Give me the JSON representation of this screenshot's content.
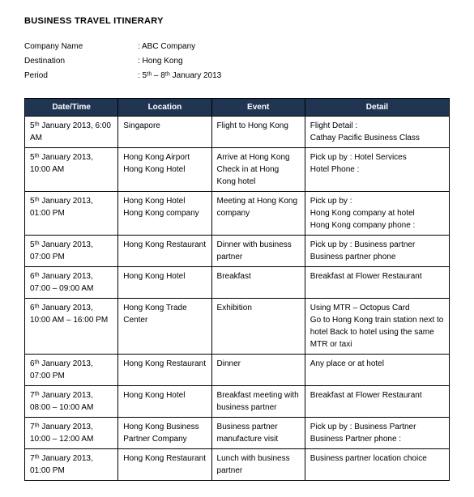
{
  "title": "BUSINESS TRAVEL ITINERARY",
  "meta": {
    "company_label": "Company Name",
    "company_value": ": ABC Company",
    "destination_label": "Destination",
    "destination_value": ": Hong Kong",
    "period_label": "Period",
    "period_value": ": 5ᵗʰ – 8ᵗʰ January 2013"
  },
  "columns": [
    "Date/Time",
    "Location",
    "Event",
    "Detail"
  ],
  "rows": [
    [
      "5ᵗʰ January  2013, 6:00 AM",
      "Singapore",
      "Flight to Hong Kong",
      "Flight Detail :\nCathay Pacific Business Class"
    ],
    [
      "5ᵗʰ January 2013, 10:00 AM",
      "Hong Kong Airport\nHong Kong Hotel",
      "Arrive at Hong Kong\nCheck in at Hong Kong hotel",
      "Pick up by : Hotel Services\nHotel Phone :"
    ],
    [
      "5ᵗʰ January 2013, 01:00 PM",
      "Hong Kong Hotel\nHong Kong company",
      "Meeting at Hong Kong company",
      "Pick up by :\nHong Kong company at hotel\nHong Kong company phone :"
    ],
    [
      "5ᵗʰ January 2013, 07:00 PM",
      "Hong Kong Restaurant",
      "Dinner with business partner",
      "Pick up by : Business partner\nBusiness partner phone"
    ],
    [
      "6ᵗʰ January 2013, 07:00 – 09:00 AM",
      "Hong Kong Hotel",
      "Breakfast",
      "Breakfast at Flower Restaurant"
    ],
    [
      "6ᵗʰ January 2013, 10:00 AM – 16:00 PM",
      "Hong Kong Trade Center",
      "Exhibition",
      "Using MTR – Octopus Card\nGo to Hong Kong  train station next to hotel Back to hotel using the same MTR or taxi"
    ],
    [
      "6ᵗʰ January 2013, 07:00 PM",
      "Hong Kong Restaurant",
      "Dinner",
      "Any place or at hotel"
    ],
    [
      "7ᵗʰ January 2013, 08:00 – 10:00 AM",
      "Hong Kong Hotel",
      "Breakfast meeting with business partner",
      "Breakfast at Flower Restaurant"
    ],
    [
      "7ᵗʰ January 2013, 10:00 – 12:00 AM",
      "Hong Kong Business Partner Company",
      "Business partner manufacture visit",
      "Pick up by : Business Partner\nBusiness Partner phone :"
    ],
    [
      "7ᵗʰ January 2013, 01:00 PM",
      "Hong Kong Restaurant",
      "Lunch with business partner",
      "Business partner location choice"
    ]
  ]
}
